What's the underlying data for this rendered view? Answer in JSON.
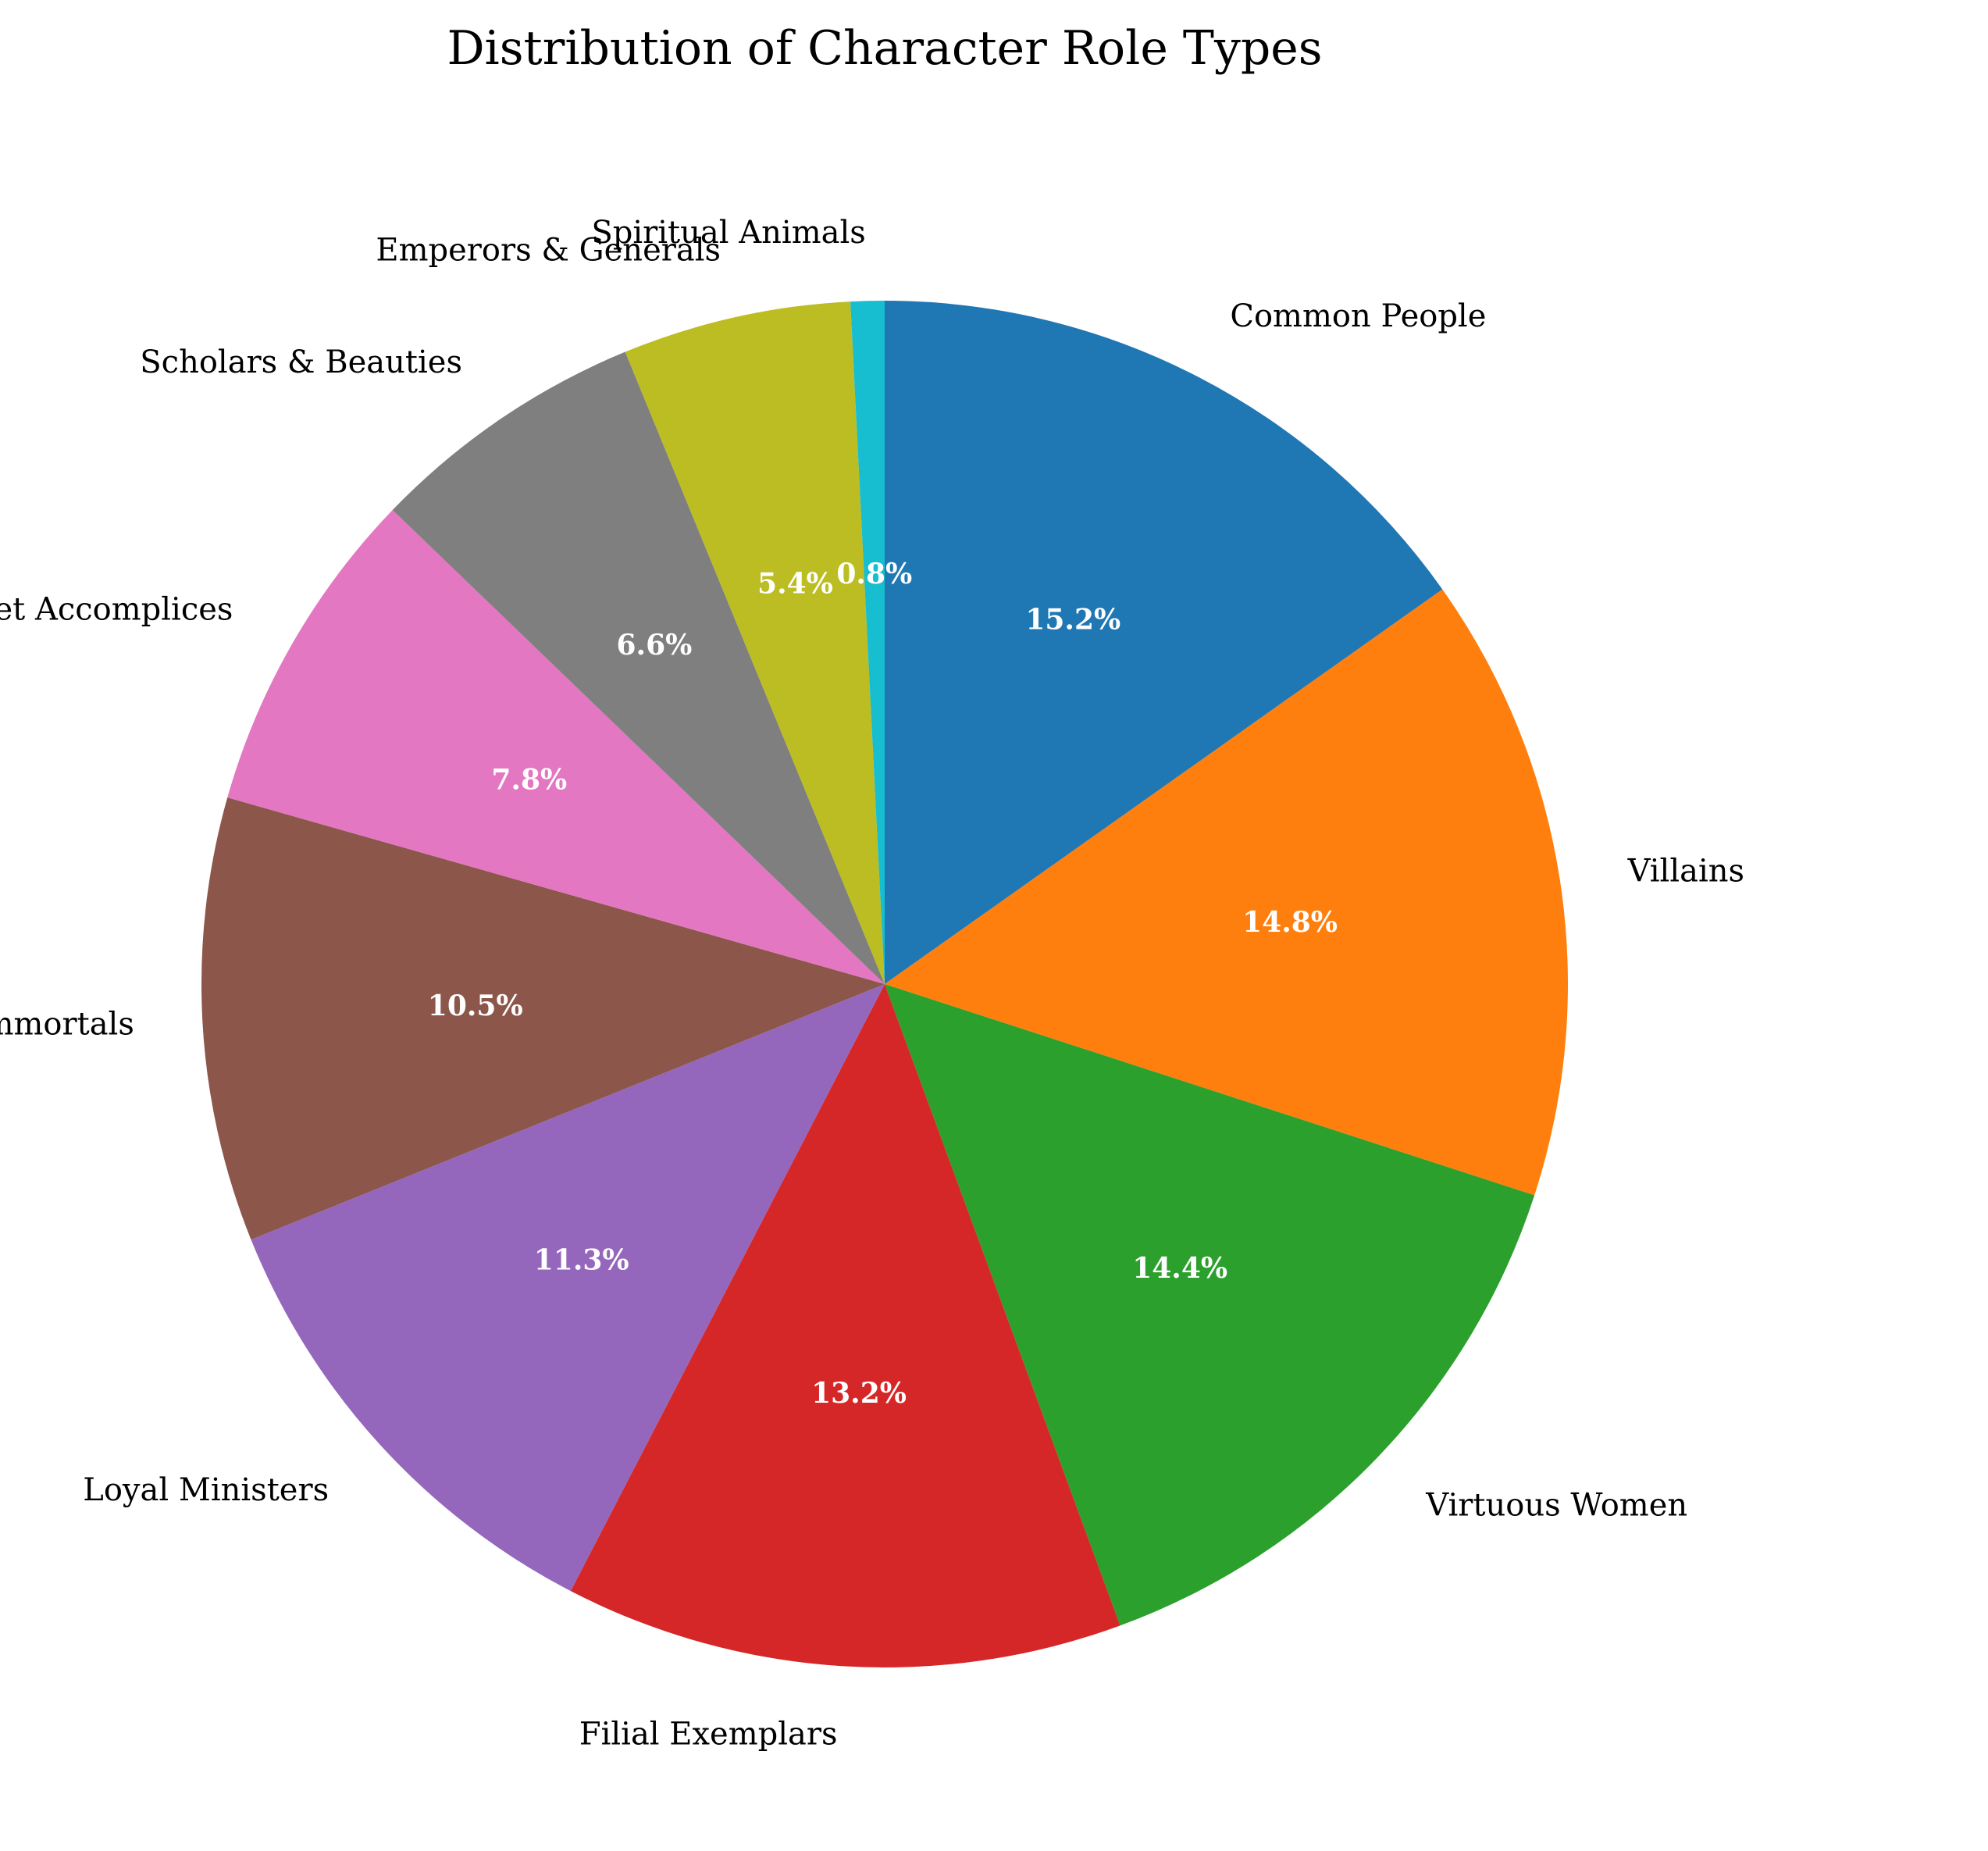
{
  "chart_data": {
    "type": "pie",
    "title": "Distribution of Character Role Types",
    "start_angle_deg": 90,
    "direction": "clockwise",
    "slices": [
      {
        "label": "Common People",
        "value": 15.2,
        "pct_label": "15.2%",
        "color": "#1f77b4"
      },
      {
        "label": "Villains",
        "value": 14.8,
        "pct_label": "14.8%",
        "color": "#ff7f0e"
      },
      {
        "label": "Virtuous Women",
        "value": 14.4,
        "pct_label": "14.4%",
        "color": "#2ca02c"
      },
      {
        "label": "Filial Exemplars",
        "value": 13.2,
        "pct_label": "13.2%",
        "color": "#d62728"
      },
      {
        "label": "Loyal Ministers",
        "value": 11.3,
        "pct_label": "11.3%",
        "color": "#9467bd"
      },
      {
        "label": "Deities & Immortals",
        "value": 10.5,
        "pct_label": "10.5%",
        "color": "#8c564b"
      },
      {
        "label": "Puppet Accomplices",
        "value": 7.8,
        "pct_label": "7.8%",
        "color": "#e377c2"
      },
      {
        "label": "Scholars & Beauties",
        "value": 6.6,
        "pct_label": "6.6%",
        "color": "#7f7f7f"
      },
      {
        "label": "Emperors & Generals",
        "value": 5.4,
        "pct_label": "5.4%",
        "color": "#bcbd22"
      },
      {
        "label": "Spiritual Animals",
        "value": 0.8,
        "pct_label": "0.8%",
        "color": "#17becf"
      }
    ]
  }
}
